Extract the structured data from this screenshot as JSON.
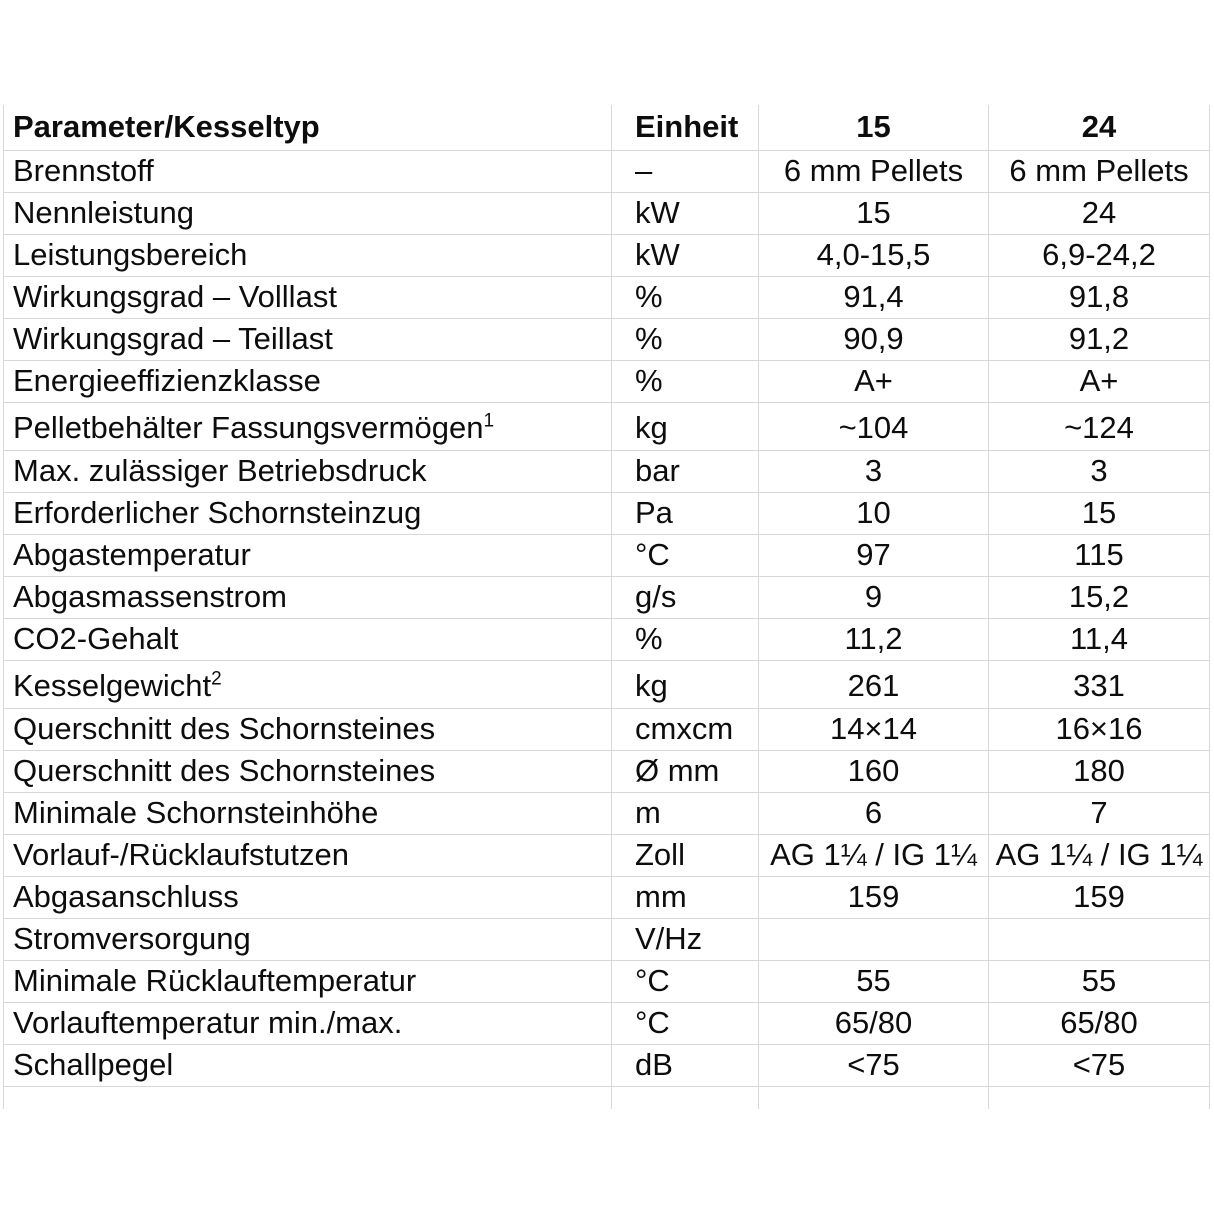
{
  "table": {
    "columns": [
      "Parameter/Kesseltyp",
      "Einheit",
      "15",
      "24"
    ],
    "rows": [
      {
        "param": "Brennstoff",
        "unit": "–",
        "v15": "6 mm Pellets",
        "v24": "6 mm Pellets"
      },
      {
        "param": "Nennleistung",
        "unit": "kW",
        "v15": "15",
        "v24": "24"
      },
      {
        "param": "Leistungsbereich",
        "unit": "kW",
        "v15": "4,0-15,5",
        "v24": "6,9-24,2"
      },
      {
        "param": "Wirkungsgrad – Volllast",
        "unit": "%",
        "v15": "91,4",
        "v24": "91,8"
      },
      {
        "param": "Wirkungsgrad – Teillast",
        "unit": "%",
        "v15": "90,9",
        "v24": "91,2"
      },
      {
        "param": "Energieeffizienzklasse",
        "unit": "%",
        "v15": "A+",
        "v24": "A+"
      },
      {
        "param": "Pelletbehälter Fassungsvermögen",
        "sup": "1",
        "tall": true,
        "unit": "kg",
        "v15": "~104",
        "v24": "~124"
      },
      {
        "param": "Max. zulässiger Betriebsdruck",
        "unit": "bar",
        "v15": "3",
        "v24": "3"
      },
      {
        "param": "Erforderlicher Schornsteinzug",
        "unit": "Pa",
        "v15": "10",
        "v24": "15"
      },
      {
        "param": "Abgastemperatur",
        "unit": "°C",
        "v15": "97",
        "v24": "115"
      },
      {
        "param": "Abgasmassenstrom",
        "unit": "g/s",
        "v15": "9",
        "v24": "15,2"
      },
      {
        "param": "CO2-Gehalt",
        "unit": "%",
        "v15": "11,2",
        "v24": "11,4"
      },
      {
        "param": "Kesselgewicht",
        "sup": "2",
        "tall": true,
        "unit": "kg",
        "v15": "261",
        "v24": "331"
      },
      {
        "param": "Querschnitt des Schornsteines",
        "unit": "cmxcm",
        "v15": "14×14",
        "v24": "16×16"
      },
      {
        "param": "Querschnitt des Schornsteines",
        "unit": "Ø mm",
        "v15": "160",
        "v24": "180"
      },
      {
        "param": "Minimale Schornsteinhöhe",
        "unit": "m",
        "v15": "6",
        "v24": "7"
      },
      {
        "param": "Vorlauf-/Rücklaufstutzen",
        "unit": "Zoll",
        "v15": "AG 1¼ / IG 1¼",
        "v24": "AG 1¼ / IG 1¼"
      },
      {
        "param": "Abgasanschluss",
        "unit": "mm",
        "v15": "159",
        "v24": "159"
      },
      {
        "param": "Stromversorgung",
        "unit": "V/Hz",
        "v15": "",
        "v24": ""
      },
      {
        "param": "Minimale Rücklauftemperatur",
        "unit": "°C",
        "v15": "55",
        "v24": "55"
      },
      {
        "param": "Vorlauftemperatur min./max.",
        "unit": "°C",
        "v15": "65/80",
        "v24": "65/80"
      },
      {
        "param": "Schallpegel",
        "unit": "dB",
        "v15": "<75",
        "v24": "<75"
      }
    ]
  }
}
